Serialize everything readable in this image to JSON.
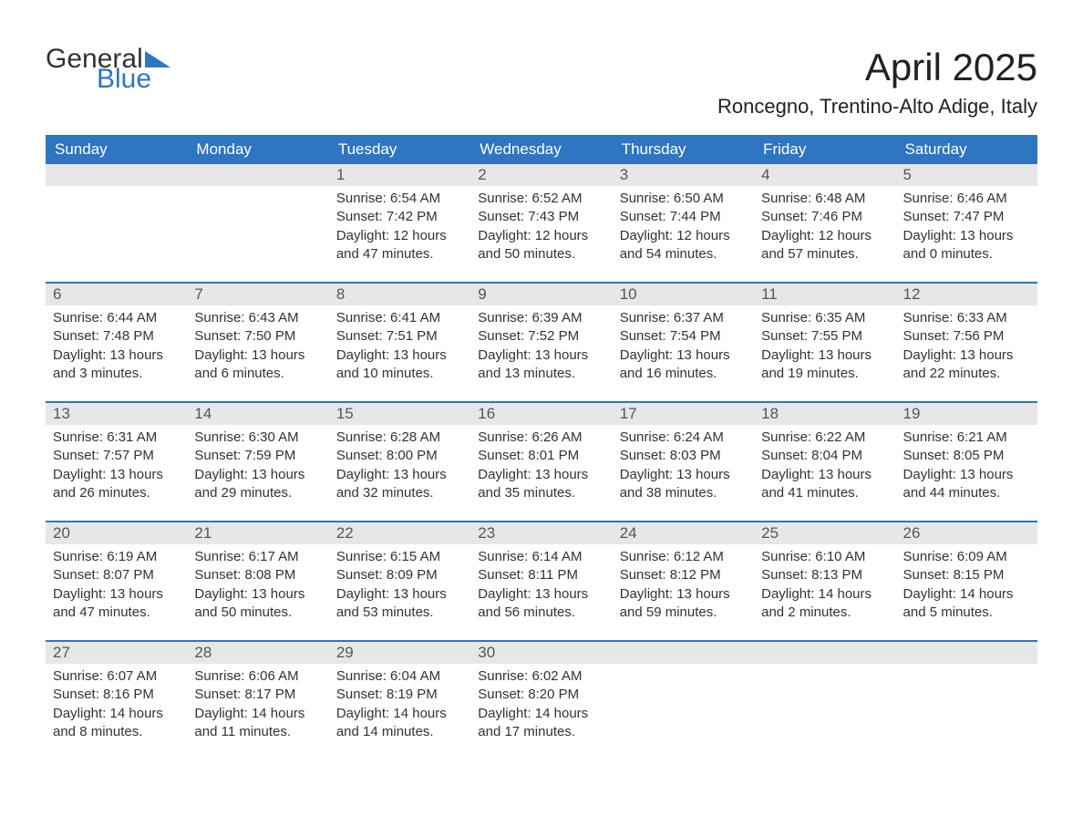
{
  "logo": {
    "word1": "General",
    "word2": "Blue"
  },
  "title": "April 2025",
  "location": "Roncegno, Trentino-Alto Adige, Italy",
  "accent_color": "#2e75c2",
  "header_bg": "#2e75c2",
  "daynum_bg": "#e7e7e7",
  "text_color": "#333333",
  "weekdays": [
    "Sunday",
    "Monday",
    "Tuesday",
    "Wednesday",
    "Thursday",
    "Friday",
    "Saturday"
  ],
  "weeks": [
    [
      null,
      null,
      {
        "n": "1",
        "sunrise": "Sunrise: 6:54 AM",
        "sunset": "Sunset: 7:42 PM",
        "d1": "Daylight: 12 hours",
        "d2": "and 47 minutes."
      },
      {
        "n": "2",
        "sunrise": "Sunrise: 6:52 AM",
        "sunset": "Sunset: 7:43 PM",
        "d1": "Daylight: 12 hours",
        "d2": "and 50 minutes."
      },
      {
        "n": "3",
        "sunrise": "Sunrise: 6:50 AM",
        "sunset": "Sunset: 7:44 PM",
        "d1": "Daylight: 12 hours",
        "d2": "and 54 minutes."
      },
      {
        "n": "4",
        "sunrise": "Sunrise: 6:48 AM",
        "sunset": "Sunset: 7:46 PM",
        "d1": "Daylight: 12 hours",
        "d2": "and 57 minutes."
      },
      {
        "n": "5",
        "sunrise": "Sunrise: 6:46 AM",
        "sunset": "Sunset: 7:47 PM",
        "d1": "Daylight: 13 hours",
        "d2": "and 0 minutes."
      }
    ],
    [
      {
        "n": "6",
        "sunrise": "Sunrise: 6:44 AM",
        "sunset": "Sunset: 7:48 PM",
        "d1": "Daylight: 13 hours",
        "d2": "and 3 minutes."
      },
      {
        "n": "7",
        "sunrise": "Sunrise: 6:43 AM",
        "sunset": "Sunset: 7:50 PM",
        "d1": "Daylight: 13 hours",
        "d2": "and 6 minutes."
      },
      {
        "n": "8",
        "sunrise": "Sunrise: 6:41 AM",
        "sunset": "Sunset: 7:51 PM",
        "d1": "Daylight: 13 hours",
        "d2": "and 10 minutes."
      },
      {
        "n": "9",
        "sunrise": "Sunrise: 6:39 AM",
        "sunset": "Sunset: 7:52 PM",
        "d1": "Daylight: 13 hours",
        "d2": "and 13 minutes."
      },
      {
        "n": "10",
        "sunrise": "Sunrise: 6:37 AM",
        "sunset": "Sunset: 7:54 PM",
        "d1": "Daylight: 13 hours",
        "d2": "and 16 minutes."
      },
      {
        "n": "11",
        "sunrise": "Sunrise: 6:35 AM",
        "sunset": "Sunset: 7:55 PM",
        "d1": "Daylight: 13 hours",
        "d2": "and 19 minutes."
      },
      {
        "n": "12",
        "sunrise": "Sunrise: 6:33 AM",
        "sunset": "Sunset: 7:56 PM",
        "d1": "Daylight: 13 hours",
        "d2": "and 22 minutes."
      }
    ],
    [
      {
        "n": "13",
        "sunrise": "Sunrise: 6:31 AM",
        "sunset": "Sunset: 7:57 PM",
        "d1": "Daylight: 13 hours",
        "d2": "and 26 minutes."
      },
      {
        "n": "14",
        "sunrise": "Sunrise: 6:30 AM",
        "sunset": "Sunset: 7:59 PM",
        "d1": "Daylight: 13 hours",
        "d2": "and 29 minutes."
      },
      {
        "n": "15",
        "sunrise": "Sunrise: 6:28 AM",
        "sunset": "Sunset: 8:00 PM",
        "d1": "Daylight: 13 hours",
        "d2": "and 32 minutes."
      },
      {
        "n": "16",
        "sunrise": "Sunrise: 6:26 AM",
        "sunset": "Sunset: 8:01 PM",
        "d1": "Daylight: 13 hours",
        "d2": "and 35 minutes."
      },
      {
        "n": "17",
        "sunrise": "Sunrise: 6:24 AM",
        "sunset": "Sunset: 8:03 PM",
        "d1": "Daylight: 13 hours",
        "d2": "and 38 minutes."
      },
      {
        "n": "18",
        "sunrise": "Sunrise: 6:22 AM",
        "sunset": "Sunset: 8:04 PM",
        "d1": "Daylight: 13 hours",
        "d2": "and 41 minutes."
      },
      {
        "n": "19",
        "sunrise": "Sunrise: 6:21 AM",
        "sunset": "Sunset: 8:05 PM",
        "d1": "Daylight: 13 hours",
        "d2": "and 44 minutes."
      }
    ],
    [
      {
        "n": "20",
        "sunrise": "Sunrise: 6:19 AM",
        "sunset": "Sunset: 8:07 PM",
        "d1": "Daylight: 13 hours",
        "d2": "and 47 minutes."
      },
      {
        "n": "21",
        "sunrise": "Sunrise: 6:17 AM",
        "sunset": "Sunset: 8:08 PM",
        "d1": "Daylight: 13 hours",
        "d2": "and 50 minutes."
      },
      {
        "n": "22",
        "sunrise": "Sunrise: 6:15 AM",
        "sunset": "Sunset: 8:09 PM",
        "d1": "Daylight: 13 hours",
        "d2": "and 53 minutes."
      },
      {
        "n": "23",
        "sunrise": "Sunrise: 6:14 AM",
        "sunset": "Sunset: 8:11 PM",
        "d1": "Daylight: 13 hours",
        "d2": "and 56 minutes."
      },
      {
        "n": "24",
        "sunrise": "Sunrise: 6:12 AM",
        "sunset": "Sunset: 8:12 PM",
        "d1": "Daylight: 13 hours",
        "d2": "and 59 minutes."
      },
      {
        "n": "25",
        "sunrise": "Sunrise: 6:10 AM",
        "sunset": "Sunset: 8:13 PM",
        "d1": "Daylight: 14 hours",
        "d2": "and 2 minutes."
      },
      {
        "n": "26",
        "sunrise": "Sunrise: 6:09 AM",
        "sunset": "Sunset: 8:15 PM",
        "d1": "Daylight: 14 hours",
        "d2": "and 5 minutes."
      }
    ],
    [
      {
        "n": "27",
        "sunrise": "Sunrise: 6:07 AM",
        "sunset": "Sunset: 8:16 PM",
        "d1": "Daylight: 14 hours",
        "d2": "and 8 minutes."
      },
      {
        "n": "28",
        "sunrise": "Sunrise: 6:06 AM",
        "sunset": "Sunset: 8:17 PM",
        "d1": "Daylight: 14 hours",
        "d2": "and 11 minutes."
      },
      {
        "n": "29",
        "sunrise": "Sunrise: 6:04 AM",
        "sunset": "Sunset: 8:19 PM",
        "d1": "Daylight: 14 hours",
        "d2": "and 14 minutes."
      },
      {
        "n": "30",
        "sunrise": "Sunrise: 6:02 AM",
        "sunset": "Sunset: 8:20 PM",
        "d1": "Daylight: 14 hours",
        "d2": "and 17 minutes."
      },
      null,
      null,
      null
    ]
  ]
}
